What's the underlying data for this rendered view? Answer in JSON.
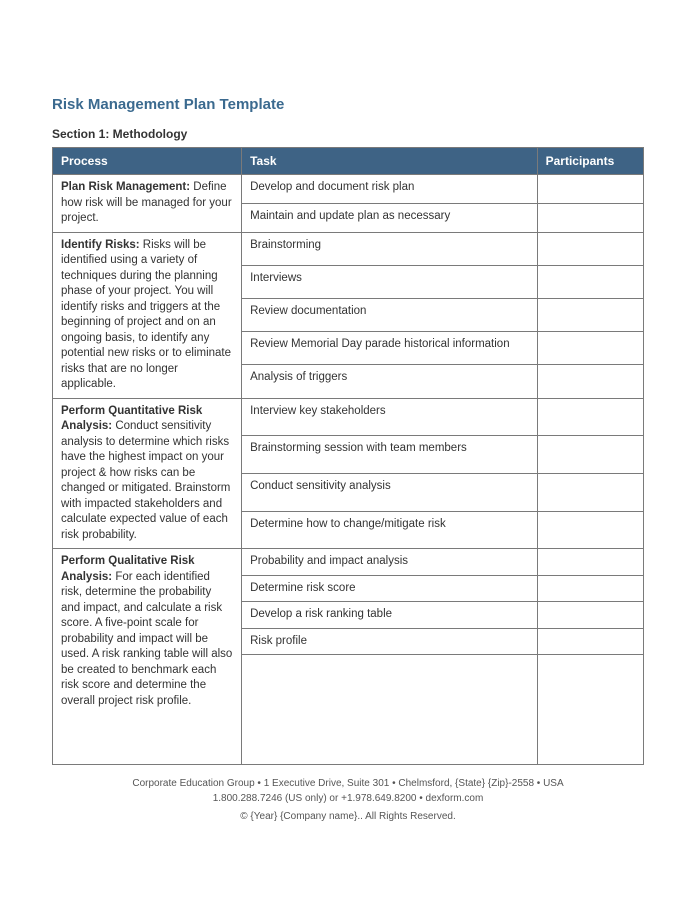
{
  "colors": {
    "title": "#3b6a8f",
    "header_bg": "#3e6385",
    "header_text": "#ffffff",
    "border": "#7a7a7a",
    "body_text": "#333333",
    "footer_text": "#555555",
    "background": "#ffffff"
  },
  "title": "Risk Management Plan Template",
  "section_title": "Section 1: Methodology",
  "columns": {
    "process": "Process",
    "task": "Task",
    "participants": "Participants"
  },
  "groups": [
    {
      "label": "Plan Risk Management:",
      "desc": " Define how risk will be managed for your project.",
      "tasks": [
        "Develop and document risk plan",
        "Maintain and update plan as necessary"
      ]
    },
    {
      "label": "Identify Risks:",
      "desc": " Risks will be identified using a variety of techniques during the planning phase of your project. You will identify risks and triggers at the beginning of project and on an ongoing basis, to identify any potential new risks or to eliminate risks that are no longer applicable.",
      "tasks": [
        "Brainstorming",
        "Interviews",
        "Review documentation",
        "Review Memorial Day parade historical information",
        "Analysis of triggers"
      ]
    },
    {
      "label": "Perform Quantitative Risk Analysis:",
      "desc": " Conduct sensitivity analysis to determine which risks have the highest impact on your project & how risks can be changed or mitigated. Brainstorm with impacted stakeholders and calculate expected value of each risk probability.",
      "tasks": [
        "Interview key stakeholders",
        "Brainstorming session with team members",
        "Conduct sensitivity analysis",
        "Determine how to change/mitigate risk"
      ]
    },
    {
      "label": "Perform Qualitative Risk Analysis:",
      "desc": " For each identified risk, determine the probability and impact, and calculate a risk score. A five-point scale for probability and impact will be used. A risk ranking table will also be created to benchmark each risk score and determine the overall project risk profile.",
      "tasks": [
        "Probability and impact analysis",
        "Determine risk score",
        "Develop a risk ranking table",
        "Risk profile"
      ]
    }
  ],
  "footer": {
    "line1": "Corporate Education Group • 1 Executive Drive, Suite 301 • Chelmsford, {State} {Zip}-2558 • USA",
    "line2": "1.800.288.7246 (US only) or +1.978.649.8200 • dexform.com",
    "line3": "© {Year} {Company name}.. All Rights Reserved."
  }
}
